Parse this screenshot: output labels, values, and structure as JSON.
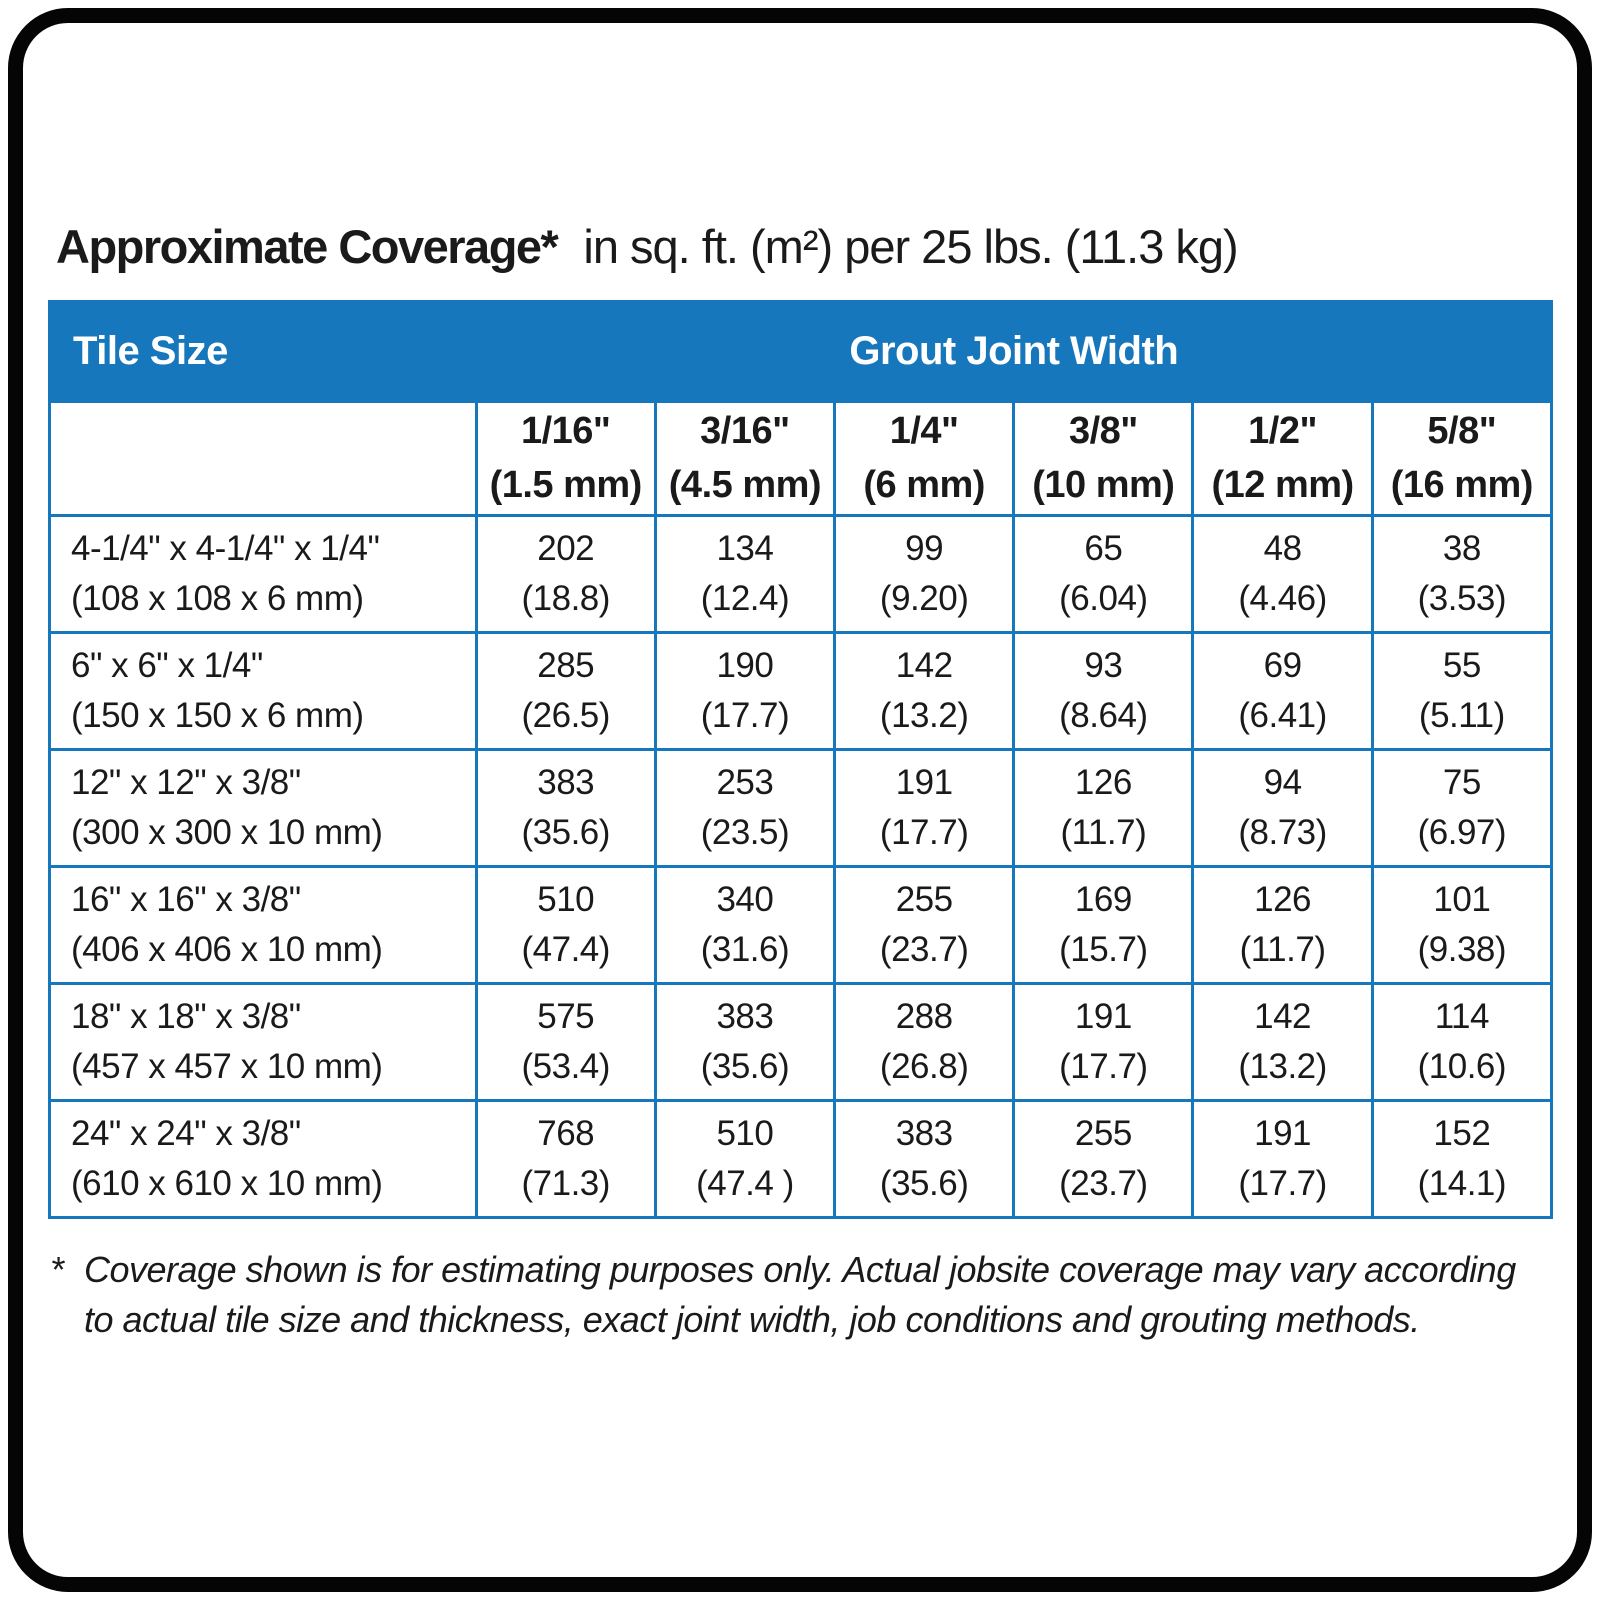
{
  "title": {
    "bold": "Approximate Coverage*",
    "rest": "in sq. ft. (m²) per 25 lbs. (11.3 kg)"
  },
  "colors": {
    "header_blue": "#1777bd",
    "border_blue": "#1777bd",
    "border_black": "#050505"
  },
  "table": {
    "header": {
      "tile_size": "Tile Size",
      "grout_joint_width": "Grout Joint Width"
    },
    "columns": [
      {
        "size": "1/16\"",
        "metric": "(1.5 mm)"
      },
      {
        "size": "3/16\"",
        "metric": "(4.5 mm)"
      },
      {
        "size": "1/4\"",
        "metric": "(6 mm)"
      },
      {
        "size": "3/8\"",
        "metric": "(10 mm)"
      },
      {
        "size": "1/2\"",
        "metric": "(12 mm)"
      },
      {
        "size": "5/8\"",
        "metric": "(16 mm)"
      }
    ],
    "rows": [
      {
        "tile": "4-1/4\" x 4-1/4\" x 1/4\"",
        "tile_metric": "(108 x 108 x 6 mm)",
        "values": [
          [
            "202",
            "(18.8)"
          ],
          [
            "134",
            "(12.4)"
          ],
          [
            "99",
            "(9.20)"
          ],
          [
            "65",
            "(6.04)"
          ],
          [
            "48",
            "(4.46)"
          ],
          [
            "38",
            "(3.53)"
          ]
        ]
      },
      {
        "tile": "6\" x 6\" x 1/4\"",
        "tile_metric": "(150 x 150 x 6 mm)",
        "values": [
          [
            "285",
            "(26.5)"
          ],
          [
            "190",
            "(17.7)"
          ],
          [
            "142",
            "(13.2)"
          ],
          [
            "93",
            "(8.64)"
          ],
          [
            "69",
            "(6.41)"
          ],
          [
            "55",
            "(5.11)"
          ]
        ]
      },
      {
        "tile": "12\" x 12\" x 3/8\"",
        "tile_metric": "(300 x 300 x 10 mm)",
        "values": [
          [
            "383",
            "(35.6)"
          ],
          [
            "253",
            "(23.5)"
          ],
          [
            "191",
            "(17.7)"
          ],
          [
            "126",
            "(11.7)"
          ],
          [
            "94",
            "(8.73)"
          ],
          [
            "75",
            "(6.97)"
          ]
        ]
      },
      {
        "tile": "16\" x 16\" x 3/8\"",
        "tile_metric": "(406 x 406 x 10 mm)",
        "values": [
          [
            "510",
            "(47.4)"
          ],
          [
            "340",
            "(31.6)"
          ],
          [
            "255",
            "(23.7)"
          ],
          [
            "169",
            "(15.7)"
          ],
          [
            "126",
            "(11.7)"
          ],
          [
            "101",
            "(9.38)"
          ]
        ]
      },
      {
        "tile": "18\" x 18\" x 3/8\"",
        "tile_metric": "(457 x 457 x 10 mm)",
        "values": [
          [
            "575",
            "(53.4)"
          ],
          [
            "383",
            "(35.6)"
          ],
          [
            "288",
            "(26.8)"
          ],
          [
            "191",
            "(17.7)"
          ],
          [
            "142",
            "(13.2)"
          ],
          [
            "114",
            "(10.6)"
          ]
        ]
      },
      {
        "tile": "24\" x 24\" x 3/8\"",
        "tile_metric": "(610 x 610 x 10 mm)",
        "values": [
          [
            "768",
            "(71.3)"
          ],
          [
            "510",
            "(47.4 )"
          ],
          [
            "383",
            "(35.6)"
          ],
          [
            "255",
            "(23.7)"
          ],
          [
            "191",
            "(17.7)"
          ],
          [
            "152",
            "(14.1)"
          ]
        ]
      }
    ]
  },
  "footnote": {
    "marker": "*",
    "text": "Coverage shown is for estimating purposes only. Actual jobsite coverage may vary according to actual tile size and thickness, exact joint width, job conditions and grouting methods."
  }
}
